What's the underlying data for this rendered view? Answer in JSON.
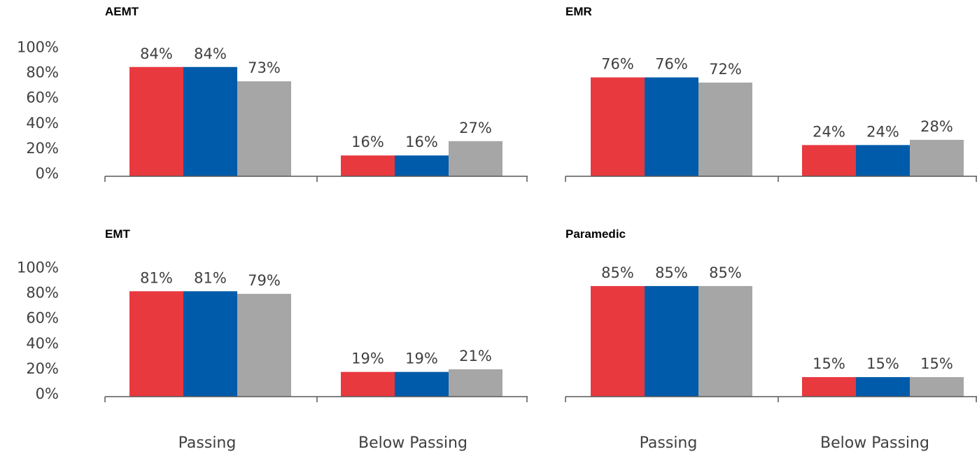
{
  "chart_data": [
    {
      "type": "bar",
      "title": "AEMT",
      "categories": [
        "Passing",
        "Below Passing"
      ],
      "series": [
        {
          "color": "#E8393F",
          "values": [
            84,
            16
          ]
        },
        {
          "color": "#005BAA",
          "values": [
            84,
            16
          ]
        },
        {
          "color": "#A6A6A6",
          "values": [
            73,
            27
          ]
        }
      ],
      "data_labels": [
        [
          "84%",
          "84%",
          "73%"
        ],
        [
          "16%",
          "16%",
          "27%"
        ]
      ],
      "yticks": [
        "100%",
        "80%",
        "60%",
        "40%",
        "20%",
        "0%"
      ],
      "ylim": [
        0,
        100
      ],
      "xlabel": "",
      "ylabel": "",
      "grid": false
    },
    {
      "type": "bar",
      "title": "EMR",
      "categories": [
        "Passing",
        "Below Passing"
      ],
      "series": [
        {
          "color": "#E8393F",
          "values": [
            76,
            24
          ]
        },
        {
          "color": "#005BAA",
          "values": [
            76,
            24
          ]
        },
        {
          "color": "#A6A6A6",
          "values": [
            72,
            28
          ]
        }
      ],
      "data_labels": [
        [
          "76%",
          "76%",
          "72%"
        ],
        [
          "24%",
          "24%",
          "28%"
        ]
      ],
      "ylim": [
        0,
        100
      ],
      "xlabel": "",
      "ylabel": "",
      "grid": false
    },
    {
      "type": "bar",
      "title": "EMT",
      "categories": [
        "Passing",
        "Below Passing"
      ],
      "series": [
        {
          "color": "#E8393F",
          "values": [
            81,
            19
          ]
        },
        {
          "color": "#005BAA",
          "values": [
            81,
            19
          ]
        },
        {
          "color": "#A6A6A6",
          "values": [
            79,
            21
          ]
        }
      ],
      "data_labels": [
        [
          "81%",
          "81%",
          "79%"
        ],
        [
          "19%",
          "19%",
          "21%"
        ]
      ],
      "yticks": [
        "100%",
        "80%",
        "60%",
        "40%",
        "20%",
        "0%"
      ],
      "ylim": [
        0,
        100
      ],
      "xlabel": "",
      "ylabel": "",
      "grid": false
    },
    {
      "type": "bar",
      "title": "Paramedic",
      "categories": [
        "Passing",
        "Below Passing"
      ],
      "series": [
        {
          "color": "#E8393F",
          "values": [
            85,
            15
          ]
        },
        {
          "color": "#005BAA",
          "values": [
            85,
            15
          ]
        },
        {
          "color": "#A6A6A6",
          "values": [
            85,
            15
          ]
        }
      ],
      "data_labels": [
        [
          "85%",
          "85%",
          "85%"
        ],
        [
          "15%",
          "15%",
          "15%"
        ]
      ],
      "ylim": [
        0,
        100
      ],
      "xlabel": "",
      "ylabel": "",
      "grid": false
    }
  ],
  "bottom_category_labels": {
    "left": [
      "Passing",
      "Below Passing"
    ],
    "right": [
      "Passing",
      "Below Passing"
    ]
  }
}
